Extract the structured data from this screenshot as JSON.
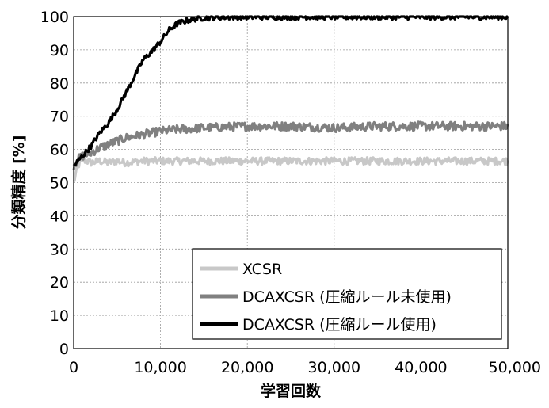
{
  "chart_data": {
    "type": "line",
    "xlabel": "学習回数",
    "ylabel": "分類精度 [%]",
    "xlim": [
      0,
      50000
    ],
    "ylim": [
      0,
      100
    ],
    "x_ticks": [
      0,
      10000,
      20000,
      30000,
      40000,
      50000
    ],
    "x_tick_labels": [
      "0",
      "10,000",
      "20,000",
      "30,000",
      "40,000",
      "50,000"
    ],
    "y_ticks": [
      0,
      10,
      20,
      30,
      40,
      50,
      60,
      70,
      80,
      90,
      100
    ],
    "y_tick_labels": [
      "0",
      "10",
      "20",
      "30",
      "40",
      "50",
      "60",
      "70",
      "80",
      "90",
      "100"
    ],
    "grid": true,
    "legend_position": "bottom-right",
    "series": [
      {
        "name": "XCSR",
        "color": "#c8c8c8",
        "x": [
          0,
          500,
          1000,
          2000,
          3000,
          4000,
          5000,
          6000,
          8000,
          10000,
          15000,
          20000,
          25000,
          30000,
          35000,
          40000,
          45000,
          50000
        ],
        "y": [
          50,
          55,
          57,
          56,
          56.5,
          56,
          56.5,
          56,
          56.5,
          56.5,
          56.5,
          56.5,
          56.5,
          56.5,
          56.5,
          56.5,
          56.5,
          56.5
        ]
      },
      {
        "name": "DCAXCSR (圧縮ルール未使用)",
        "color": "#808080",
        "x": [
          0,
          500,
          1000,
          2000,
          3000,
          4000,
          5000,
          6000,
          8000,
          10000,
          12000,
          15000,
          20000,
          25000,
          30000,
          35000,
          40000,
          45000,
          50000
        ],
        "y": [
          55,
          57,
          58,
          59,
          60.5,
          61.5,
          62.5,
          63.5,
          64.5,
          65.5,
          66,
          66.5,
          67,
          67,
          66.5,
          67,
          67,
          67,
          67
        ]
      },
      {
        "name": "DCAXCSR (圧縮ルール使用)",
        "color": "#000000",
        "x": [
          0,
          500,
          1000,
          2000,
          3000,
          4000,
          5000,
          6000,
          7000,
          8000,
          9000,
          10000,
          11000,
          12000,
          13000,
          14000,
          15000,
          17000,
          20000,
          25000,
          30000,
          35000,
          40000,
          45000,
          50000
        ],
        "y": [
          55,
          56.5,
          58,
          61,
          65,
          68,
          72,
          77,
          82,
          87,
          89.5,
          92.5,
          96,
          98,
          98.8,
          99.3,
          99.6,
          99.8,
          99.9,
          99.9,
          99.9,
          99.9,
          99.9,
          99.9,
          99.9
        ]
      }
    ]
  }
}
